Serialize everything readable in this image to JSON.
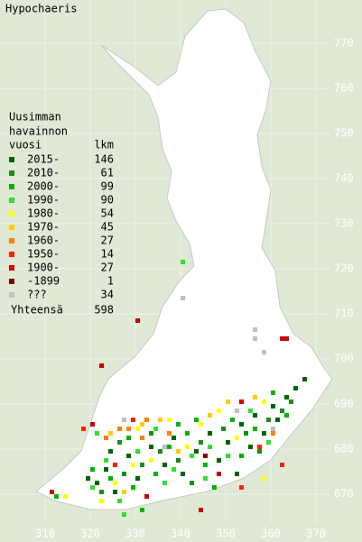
{
  "map": {
    "title": "Hypochaeris",
    "legend_title": [
      "Uusimman",
      "havainnon",
      "vuosi"
    ],
    "count_header": "lkm",
    "total_label": "Yhteensä",
    "total": 598,
    "xticks": [
      310,
      320,
      330,
      340,
      350,
      360,
      370
    ],
    "yticks": [
      770,
      760,
      750,
      740,
      730,
      720,
      710,
      700,
      690,
      680,
      670
    ],
    "classes": [
      {
        "label": "2015-",
        "count": 146,
        "color": "#006400",
        "squares": [
          [
            321,
            672
          ],
          [
            323,
            675
          ],
          [
            325,
            670
          ],
          [
            328,
            678
          ],
          [
            330,
            673
          ],
          [
            333,
            680
          ],
          [
            336,
            676
          ],
          [
            340,
            674
          ],
          [
            343,
            679
          ],
          [
            346,
            683
          ],
          [
            350,
            681
          ],
          [
            353,
            685
          ],
          [
            356,
            687
          ],
          [
            360,
            689
          ],
          [
            363,
            691
          ],
          [
            365,
            693
          ],
          [
            361,
            686
          ],
          [
            358,
            683
          ],
          [
            324,
            679
          ],
          [
            338,
            682
          ],
          [
            332,
            669
          ],
          [
            348,
            677
          ],
          [
            319,
            673
          ],
          [
            355,
            680
          ],
          [
            367,
            695
          ],
          [
            352,
            674
          ]
        ]
      },
      {
        "label": "2010-",
        "count": 61,
        "color": "#1b8c1b",
        "squares": [
          [
            322,
            670
          ],
          [
            327,
            674
          ],
          [
            331,
            676
          ],
          [
            335,
            679
          ],
          [
            339,
            677
          ],
          [
            344,
            681
          ],
          [
            349,
            684
          ],
          [
            354,
            683
          ],
          [
            359,
            686
          ],
          [
            362,
            688
          ],
          [
            326,
            681
          ],
          [
            342,
            672
          ],
          [
            357,
            679
          ],
          [
            364,
            690
          ],
          [
            333,
            683
          ]
        ]
      },
      {
        "label": "2000-",
        "count": 99,
        "color": "#00b400",
        "squares": [
          [
            320,
            675
          ],
          [
            324,
            673
          ],
          [
            329,
            671
          ],
          [
            334,
            674
          ],
          [
            337,
            680
          ],
          [
            341,
            683
          ],
          [
            345,
            676
          ],
          [
            351,
            686
          ],
          [
            356,
            684
          ],
          [
            360,
            692
          ],
          [
            347,
            671
          ],
          [
            328,
            682
          ],
          [
            339,
            685
          ],
          [
            353,
            678
          ],
          [
            363,
            687
          ],
          [
            331,
            666
          ],
          [
            343,
            686
          ],
          [
            312,
            669
          ]
        ]
      },
      {
        "label": "1990-",
        "count": 90,
        "color": "#33dd33",
        "squares": [
          [
            323,
            677
          ],
          [
            326,
            668
          ],
          [
            330,
            679
          ],
          [
            336,
            672
          ],
          [
            338,
            675
          ],
          [
            342,
            678
          ],
          [
            346,
            680
          ],
          [
            350,
            678
          ],
          [
            355,
            688
          ],
          [
            359,
            681
          ],
          [
            334,
            684
          ],
          [
            327,
            665
          ],
          [
            320,
            671
          ],
          [
            345,
            673
          ],
          [
            321,
            683
          ],
          [
            340,
            721
          ]
        ]
      },
      {
        "label": "1980-",
        "count": 54,
        "color": "#ffff00",
        "squares": [
          [
            322,
            668
          ],
          [
            329,
            676
          ],
          [
            333,
            677
          ],
          [
            337,
            686
          ],
          [
            341,
            680
          ],
          [
            348,
            688
          ],
          [
            352,
            682
          ],
          [
            358,
            690
          ],
          [
            330,
            684
          ],
          [
            325,
            672
          ],
          [
            344,
            685
          ],
          [
            314,
            669
          ],
          [
            358,
            673
          ]
        ]
      },
      {
        "label": "1970-",
        "count": 45,
        "color": "#ffcc00",
        "squares": [
          [
            331,
            685
          ],
          [
            335,
            686
          ],
          [
            324,
            683
          ],
          [
            346,
            687
          ],
          [
            350,
            690
          ],
          [
            327,
            670
          ],
          [
            339,
            679
          ],
          [
            356,
            691
          ]
        ]
      },
      {
        "label": "1960-",
        "count": 27,
        "color": "#ff8000",
        "squares": [
          [
            323,
            682
          ],
          [
            326,
            684
          ],
          [
            328,
            684
          ],
          [
            332,
            686
          ],
          [
            337,
            683
          ],
          [
            360,
            683
          ],
          [
            331,
            682
          ]
        ]
      },
      {
        "label": "1950-",
        "count": 14,
        "color": "#ff2000",
        "squares": [
          [
            325,
            676
          ],
          [
            329,
            686
          ],
          [
            353,
            671
          ],
          [
            357,
            680
          ],
          [
            362,
            676
          ],
          [
            318,
            684
          ]
        ]
      },
      {
        "label": "1900-",
        "count": 27,
        "color": "#cc0000",
        "squares": [
          [
            311,
            670
          ],
          [
            353,
            690
          ],
          [
            344,
            666
          ],
          [
            332,
            669
          ],
          [
            320,
            685
          ],
          [
            348,
            674
          ],
          [
            322,
            698
          ],
          [
            330,
            708
          ],
          [
            362,
            704
          ],
          [
            363,
            704
          ]
        ]
      },
      {
        "label": "-1899",
        "count": 1,
        "color": "#800000",
        "squares": [
          [
            345,
            678
          ]
        ]
      },
      {
        "label": "???",
        "count": 34,
        "color": "#c0c0c0",
        "squares": [
          [
            340,
            713
          ],
          [
            356,
            706
          ],
          [
            356,
            704
          ],
          [
            358,
            701
          ],
          [
            352,
            688
          ],
          [
            360,
            684
          ],
          [
            336,
            680
          ],
          [
            327,
            686
          ]
        ]
      }
    ]
  }
}
